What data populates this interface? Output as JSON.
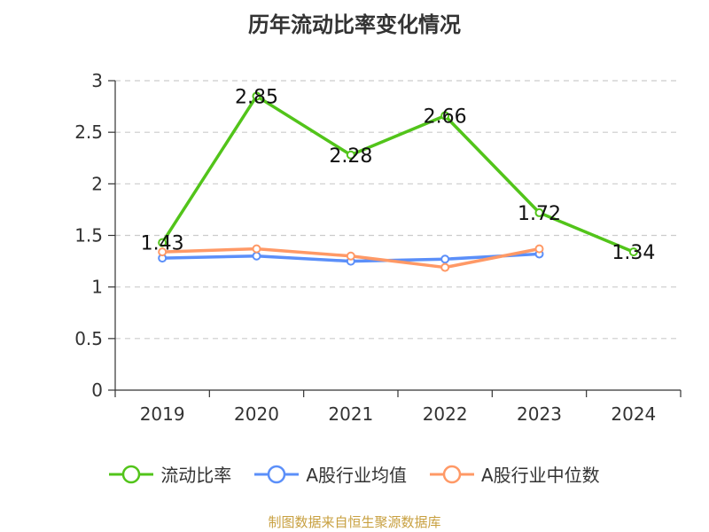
{
  "title": "历年流动比率变化情况",
  "source_note": "制图数据来自恒生聚源数据库",
  "colors": {
    "grid": "#cccccc",
    "axis": "#333333",
    "text": "#333333",
    "source": "#c8a040"
  },
  "chart_data": {
    "type": "line",
    "categories": [
      "2019",
      "2020",
      "2021",
      "2022",
      "2023",
      "2024"
    ],
    "ylim": [
      0,
      3
    ],
    "yticks": [
      "0",
      "0.5",
      "1",
      "1.5",
      "2",
      "2.5",
      "3"
    ],
    "grid": true,
    "legend_position": "bottom",
    "series": [
      {
        "name": "流动比率",
        "color": "#52c41a",
        "values": [
          1.43,
          2.85,
          2.28,
          2.66,
          1.72,
          1.34
        ],
        "labels": [
          "1.43",
          "2.85",
          "2.28",
          "2.66",
          "1.72",
          "1.34"
        ],
        "show_labels": true
      },
      {
        "name": "A股行业均值",
        "color": "#5b8ff9",
        "values": [
          1.28,
          1.3,
          1.25,
          1.27,
          1.32,
          null
        ],
        "show_labels": false
      },
      {
        "name": "A股行业中位数",
        "color": "#ff9966",
        "values": [
          1.34,
          1.37,
          1.3,
          1.19,
          1.37,
          null
        ],
        "show_labels": false
      }
    ]
  }
}
